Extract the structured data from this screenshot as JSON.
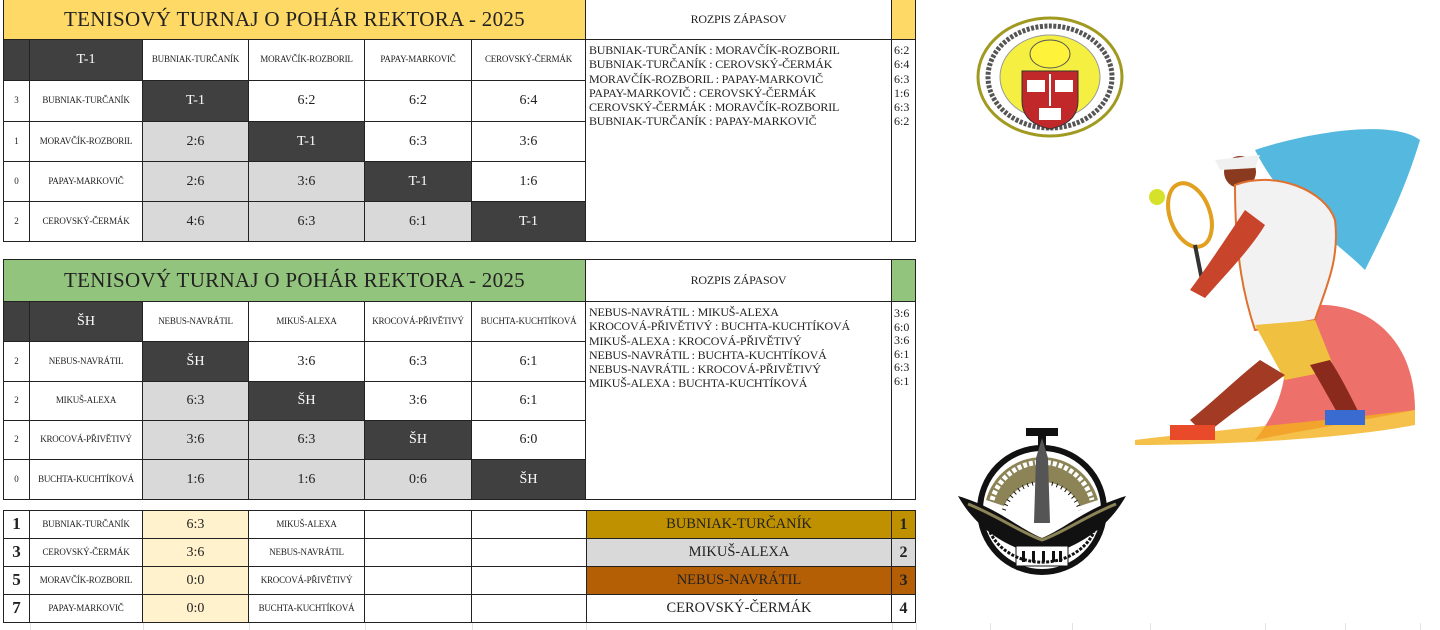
{
  "colors": {
    "title1": "#ffd966",
    "title2": "#93c47d",
    "diagonal": "#404040",
    "lower": "#d9d9d9",
    "bracket_score": "#fff2cc",
    "gold": "#bf9000",
    "silver": "#d9d9d9",
    "bronze": "#b45f06"
  },
  "group1": {
    "title": "TENISOVÝ TURNAJ O POHÁR REKTORA - 2025",
    "schedule_title": "ROZPIS ZÁPASOV",
    "label": "T-1",
    "teams": [
      "BUBNIAK-TURČANÍK",
      "MORAVČÍK-ROZBORIL",
      "PAPAY-MARKOVIČ",
      "CEROVSKÝ-ČERMÁK"
    ],
    "wins": [
      "3",
      "1",
      "0",
      "2"
    ],
    "matrix": [
      [
        "T-1",
        "6:2",
        "6:2",
        "6:4"
      ],
      [
        "2:6",
        "T-1",
        "6:3",
        "3:6"
      ],
      [
        "2:6",
        "3:6",
        "T-1",
        "1:6"
      ],
      [
        "4:6",
        "6:3",
        "6:1",
        "T-1"
      ]
    ],
    "schedule": [
      "BUBNIAK-TURČANÍK : MORAVČÍK-ROZBORIL",
      "BUBNIAK-TURČANÍK : CEROVSKÝ-ČERMÁK",
      "MORAVČÍK-ROZBORIL : PAPAY-MARKOVIČ",
      "PAPAY-MARKOVIČ : CEROVSKÝ-ČERMÁK",
      "CEROVSKÝ-ČERMÁK : MORAVČÍK-ROZBORIL",
      "BUBNIAK-TURČANÍK : PAPAY-MARKOVIČ"
    ],
    "schedule_scores": [
      "6:2",
      "6:4",
      "6:3",
      "1:6",
      "6:3",
      "6:2"
    ]
  },
  "group2": {
    "title": "TENISOVÝ TURNAJ O POHÁR REKTORA - 2025",
    "schedule_title": "ROZPIS ZÁPASOV",
    "label": "ŠH",
    "teams": [
      "NEBUS-NAVRÁTIL",
      "MIKUŠ-ALEXA",
      "KROCOVÁ-PŘIVĚTIVÝ",
      "BUCHTA-KUCHTÍKOVÁ"
    ],
    "wins": [
      "2",
      "2",
      "2",
      "0"
    ],
    "matrix": [
      [
        "ŠH",
        "3:6",
        "6:3",
        "6:1"
      ],
      [
        "6:3",
        "ŠH",
        "3:6",
        "6:1"
      ],
      [
        "3:6",
        "6:3",
        "ŠH",
        "6:0"
      ],
      [
        "1:6",
        "1:6",
        "0:6",
        "ŠH"
      ]
    ],
    "schedule": [
      "NEBUS-NAVRÁTIL : MIKUŠ-ALEXA",
      "KROCOVÁ-PŘIVĚTIVÝ : BUCHTA-KUCHTÍKOVÁ",
      "MIKUŠ-ALEXA : KROCOVÁ-PŘIVĚTIVÝ",
      "NEBUS-NAVRÁTIL : BUCHTA-KUCHTÍKOVÁ",
      "NEBUS-NAVRÁTIL :  KROCOVÁ-PŘIVĚTIVÝ",
      "MIKUŠ-ALEXA : BUCHTA-KUCHTÍKOVÁ"
    ],
    "schedule_scores": [
      "3:6",
      "6:0",
      "3:6",
      "6:1",
      "6:3",
      "6:1"
    ]
  },
  "playoff": {
    "matches": [
      {
        "no": "1",
        "home": "BUBNIAK-TURČANÍK",
        "score": "6:3",
        "away": "MIKUŠ-ALEXA"
      },
      {
        "no": "3",
        "home": "CEROVSKÝ-ČERMÁK",
        "score": "3:6",
        "away": "NEBUS-NAVRÁTIL"
      },
      {
        "no": "5",
        "home": "MORAVČÍK-ROZBORIL",
        "score": "0:0",
        "away": "KROCOVÁ-PŘIVĚTIVÝ"
      },
      {
        "no": "7",
        "home": "PAPAY-MARKOVIČ",
        "score": "0:0",
        "away": "BUCHTA-KUCHTÍKOVÁ"
      }
    ],
    "final_standings": [
      {
        "team": "BUBNIAK-TURČANÍK",
        "place": "1"
      },
      {
        "team": "MIKUŠ-ALEXA",
        "place": "2"
      },
      {
        "team": "NEBUS-NAVRÁTIL",
        "place": "3"
      },
      {
        "team": "CEROVSKÝ-ČERMÁK",
        "place": "4"
      }
    ]
  },
  "logos": {
    "academy_seal": "GENERÁLA MILANA RASTISLAVA ŠTEFÁNIKA AKADÉMIA OZBROJENÝCH SÍL",
    "ktvs": "AKADÉMIA OZBROJENÝCH SÍL KTVŠ KATEDRA TELESNEJ VÝCHOVY A ŠPORTU",
    "ktvs_dial": [
      "50",
      "55",
      "5",
      "10"
    ],
    "player_illustration": "tennis-player-illustration"
  }
}
